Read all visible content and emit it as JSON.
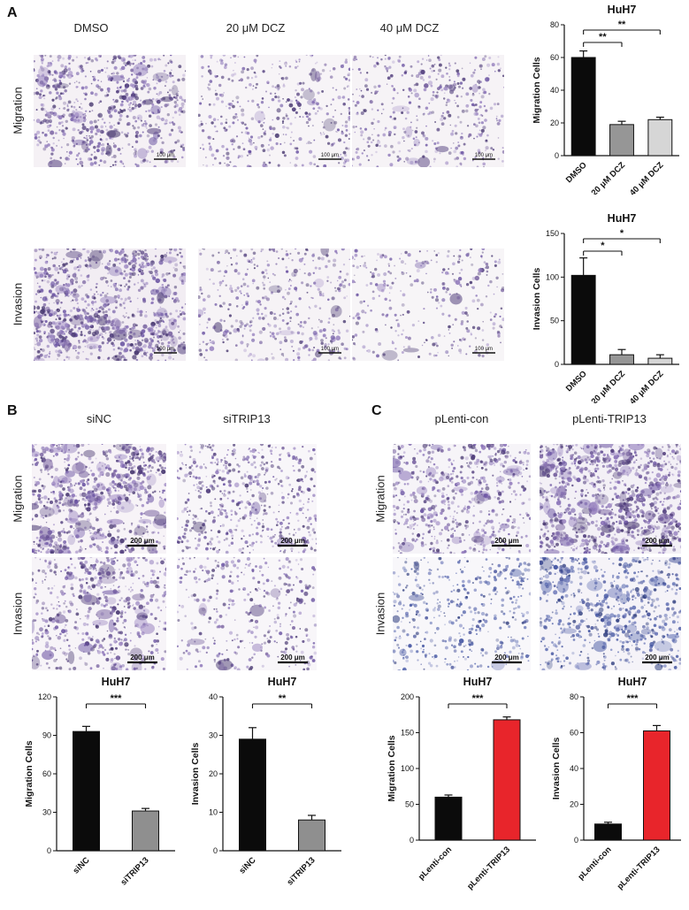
{
  "figure": {
    "panel_a": {
      "label": "A",
      "columns": [
        "DMSO",
        "20 μM DCZ",
        "40 μM DCZ"
      ],
      "rows": [
        "Migration",
        "Invasion"
      ],
      "scale_bar": "100 μm"
    },
    "panel_b": {
      "label": "B",
      "columns": [
        "siNC",
        "siTRIP13"
      ],
      "rows": [
        "Migration",
        "Invasion"
      ],
      "scale_bar": "200 μm"
    },
    "panel_c": {
      "label": "C",
      "columns": [
        "pLenti-con",
        "pLenti-TRIP13"
      ],
      "rows": [
        "Migration",
        "Invasion"
      ],
      "scale_bar": "200 μm"
    }
  },
  "chart_data": [
    {
      "id": "a-migration",
      "type": "bar",
      "title": "HuH7",
      "xlabel": "",
      "ylabel": "Migration Cells",
      "categories": [
        "DMSO",
        "20 μM DCZ",
        "40 μM DCZ"
      ],
      "values": [
        60,
        19,
        22
      ],
      "errors": [
        4,
        2,
        1.5
      ],
      "ylim": [
        0,
        80
      ],
      "yticks": [
        0,
        20,
        40,
        60,
        80
      ],
      "bar_colors": [
        "#0b0b0b",
        "#969696",
        "#d6d6d6"
      ],
      "significance": [
        {
          "from": 0,
          "to": 1,
          "label": "**"
        },
        {
          "from": 0,
          "to": 2,
          "label": "**"
        }
      ]
    },
    {
      "id": "a-invasion",
      "type": "bar",
      "title": "HuH7",
      "xlabel": "",
      "ylabel": "Invasion Cells",
      "categories": [
        "DMSO",
        "20 μM DCZ",
        "40 μM DCZ"
      ],
      "values": [
        102,
        11,
        7
      ],
      "errors": [
        20,
        6,
        4
      ],
      "ylim": [
        0,
        150
      ],
      "yticks": [
        0,
        50,
        100,
        150
      ],
      "bar_colors": [
        "#0b0b0b",
        "#969696",
        "#d6d6d6"
      ],
      "significance": [
        {
          "from": 0,
          "to": 1,
          "label": "*"
        },
        {
          "from": 0,
          "to": 2,
          "label": "*"
        }
      ]
    },
    {
      "id": "b-migration",
      "type": "bar",
      "title": "HuH7",
      "xlabel": "",
      "ylabel": "Migration Cells",
      "categories": [
        "siNC",
        "siTRIP13"
      ],
      "values": [
        93,
        31
      ],
      "errors": [
        4,
        2
      ],
      "ylim": [
        0,
        120
      ],
      "yticks": [
        0,
        30,
        60,
        90,
        120
      ],
      "bar_colors": [
        "#0b0b0b",
        "#8f8f8f"
      ],
      "significance": [
        {
          "from": 0,
          "to": 1,
          "label": "***"
        }
      ]
    },
    {
      "id": "b-invasion",
      "type": "bar",
      "title": "HuH7",
      "xlabel": "",
      "ylabel": "Invasion Cells",
      "categories": [
        "siNC",
        "siTRIP13"
      ],
      "values": [
        29,
        8
      ],
      "errors": [
        3,
        1.2
      ],
      "ylim": [
        0,
        40
      ],
      "yticks": [
        0,
        10,
        20,
        30,
        40
      ],
      "bar_colors": [
        "#0b0b0b",
        "#8f8f8f"
      ],
      "significance": [
        {
          "from": 0,
          "to": 1,
          "label": "**"
        }
      ]
    },
    {
      "id": "c-migration",
      "type": "bar",
      "title": "HuH7",
      "xlabel": "",
      "ylabel": "Migration Cells",
      "categories": [
        "pLenti-con",
        "pLenti-TRIP13"
      ],
      "values": [
        60,
        168
      ],
      "errors": [
        3,
        4
      ],
      "ylim": [
        0,
        200
      ],
      "yticks": [
        0,
        50,
        100,
        150,
        200
      ],
      "bar_colors": [
        "#0b0b0b",
        "#e8252b"
      ],
      "significance": [
        {
          "from": 0,
          "to": 1,
          "label": "***"
        }
      ]
    },
    {
      "id": "c-invasion",
      "type": "bar",
      "title": "HuH7",
      "xlabel": "",
      "ylabel": "Invasion Cells",
      "categories": [
        "pLenti-con",
        "pLenti-TRIP13"
      ],
      "values": [
        9,
        61
      ],
      "errors": [
        1,
        3
      ],
      "ylim": [
        0,
        80
      ],
      "yticks": [
        0,
        20,
        40,
        60,
        80
      ],
      "bar_colors": [
        "#0b0b0b",
        "#e8252b"
      ],
      "significance": [
        {
          "from": 0,
          "to": 1,
          "label": "***"
        }
      ]
    }
  ]
}
